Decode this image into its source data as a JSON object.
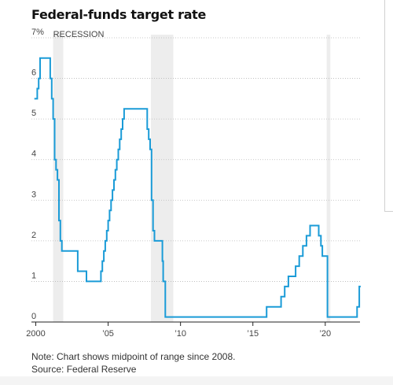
{
  "title": "Federal-funds target rate",
  "note": "Note: Chart shows midpoint of range since 2008.",
  "source": "Source: Federal Reserve",
  "chart_data": {
    "type": "line",
    "title": "Federal-funds target rate",
    "xlabel": "",
    "ylabel": "",
    "xlim": [
      1999.7,
      2022.4
    ],
    "ylim": [
      0,
      7
    ],
    "x_ticks": [
      2000,
      2005,
      2010,
      2015,
      2020
    ],
    "x_tick_labels": [
      "2000",
      "’05",
      "’10",
      "’15",
      "’20"
    ],
    "y_ticks": [
      0,
      1,
      2,
      3,
      4,
      5,
      6,
      7
    ],
    "y_tick_labels": [
      "0",
      "1",
      "2",
      "3",
      "4",
      "5",
      "6",
      "7%"
    ],
    "grid": true,
    "annotation": "RECESSION",
    "recessions": [
      [
        2001.2,
        2001.9
      ],
      [
        2007.95,
        2009.5
      ],
      [
        2020.1,
        2020.35
      ]
    ],
    "line_color": "#1a9bd7",
    "series": [
      {
        "x": [
          1999.9,
          2000.1,
          2000.1,
          2000.2,
          2000.2,
          2000.3,
          2000.3,
          2000.4,
          2000.4,
          2001.0,
          2001.0,
          2001.1,
          2001.1,
          2001.2,
          2001.2,
          2001.3,
          2001.3,
          2001.4,
          2001.4,
          2001.5,
          2001.5,
          2001.6,
          2001.6,
          2001.7,
          2001.7,
          2001.8,
          2001.8,
          2001.9,
          2001.9,
          2002.9,
          2002.9,
          2003.5,
          2003.5,
          2004.5,
          2004.5,
          2004.6,
          2004.6,
          2004.7,
          2004.7,
          2004.8,
          2004.8,
          2004.9,
          2004.9,
          2005.0,
          2005.0,
          2005.1,
          2005.1,
          2005.2,
          2005.2,
          2005.3,
          2005.3,
          2005.4,
          2005.4,
          2005.5,
          2005.5,
          2005.6,
          2005.6,
          2005.7,
          2005.7,
          2005.8,
          2005.8,
          2005.9,
          2005.9,
          2006.0,
          2006.0,
          2006.1,
          2006.1,
          2006.2,
          2006.2,
          2006.3,
          2006.3,
          2006.4,
          2006.4,
          2006.5,
          2006.5,
          2007.7,
          2007.7,
          2007.8,
          2007.8,
          2007.9,
          2007.9,
          2008.0,
          2008.0,
          2008.1,
          2008.1,
          2008.2,
          2008.2,
          2008.3,
          2008.3,
          2008.75,
          2008.75,
          2008.8,
          2008.8,
          2008.95,
          2008.95,
          2015.95,
          2015.95,
          2016.95,
          2016.95,
          2017.2,
          2017.2,
          2017.45,
          2017.45,
          2017.95,
          2017.95,
          2018.2,
          2018.2,
          2018.45,
          2018.45,
          2018.7,
          2018.7,
          2018.95,
          2018.95,
          2019.55,
          2019.55,
          2019.7,
          2019.7,
          2019.8,
          2019.8,
          2020.15,
          2020.15,
          2022.2,
          2022.2,
          2022.35,
          2022.35,
          2022.45,
          2022.45
        ],
        "y": [
          5.5,
          5.5,
          5.75,
          5.75,
          6.0,
          6.0,
          6.5,
          6.5,
          6.5,
          6.5,
          6.0,
          6.0,
          5.5,
          5.5,
          5.0,
          5.0,
          4.0,
          4.0,
          3.75,
          3.75,
          3.5,
          3.5,
          2.5,
          2.5,
          2.0,
          2.0,
          1.75,
          1.75,
          1.75,
          1.75,
          1.25,
          1.25,
          1.0,
          1.0,
          1.25,
          1.25,
          1.5,
          1.5,
          1.75,
          1.75,
          2.0,
          2.0,
          2.25,
          2.25,
          2.5,
          2.5,
          2.75,
          2.75,
          3.0,
          3.0,
          3.25,
          3.25,
          3.5,
          3.5,
          3.75,
          3.75,
          4.0,
          4.0,
          4.25,
          4.25,
          4.5,
          4.5,
          4.75,
          4.75,
          5.0,
          5.0,
          5.25,
          5.25,
          5.25,
          5.25,
          5.25,
          5.25,
          5.25,
          5.25,
          5.25,
          5.25,
          4.75,
          4.75,
          4.5,
          4.5,
          4.25,
          4.25,
          3.0,
          3.0,
          2.25,
          2.25,
          2.0,
          2.0,
          2.0,
          2.0,
          1.5,
          1.5,
          1.0,
          1.0,
          0.125,
          0.125,
          0.375,
          0.375,
          0.625,
          0.625,
          0.875,
          0.875,
          1.125,
          1.125,
          1.375,
          1.375,
          1.625,
          1.625,
          1.875,
          1.875,
          2.125,
          2.125,
          2.375,
          2.375,
          2.125,
          2.125,
          1.875,
          1.875,
          1.625,
          1.625,
          0.125,
          0.125,
          0.375,
          0.375,
          0.875,
          0.875,
          0.875
        ]
      }
    ]
  }
}
